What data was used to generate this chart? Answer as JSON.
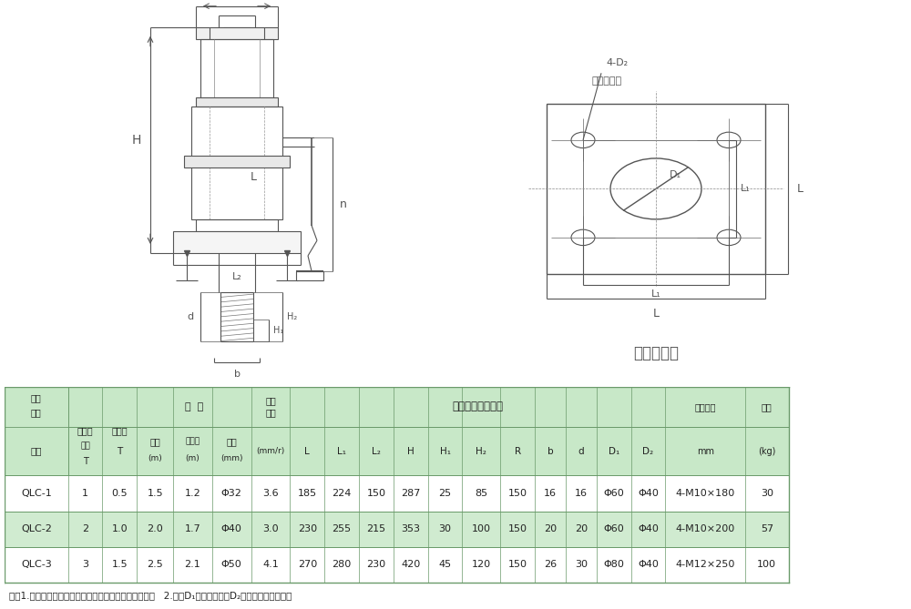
{
  "bg_color": "#ffffff",
  "line_color": "#555555",
  "table_header_bg": "#c8e8c8",
  "table_row_bg1": "#ffffff",
  "table_row_bg2": "#d0ebd0",
  "table_border_color": "#6a9a6a",
  "title_note": "注：1.启闭速度指的是手柄转一圈闸门提升或下降的距离   2.参数D₁是过螺杆孔，D₂是二次浇注预留孔。",
  "data_rows": [
    [
      "QLC-1",
      "1",
      "0.5",
      "1.5",
      "1.2",
      "Φ32",
      "3.6",
      "185",
      "224",
      "150",
      "287",
      "25",
      "85",
      "150",
      "16",
      "16",
      "Φ60",
      "Φ40",
      "4-M10×180",
      "30"
    ],
    [
      "QLC-2",
      "2",
      "1.0",
      "2.0",
      "1.7",
      "Φ40",
      "3.0",
      "230",
      "255",
      "215",
      "353",
      "30",
      "100",
      "150",
      "20",
      "20",
      "Φ60",
      "Φ40",
      "4-M10×200",
      "57"
    ],
    [
      "QLC-3",
      "3",
      "1.5",
      "2.5",
      "2.1",
      "Φ50",
      "4.1",
      "270",
      "280",
      "230",
      "420",
      "45",
      "120",
      "150",
      "26",
      "30",
      "Φ80",
      "Φ40",
      "4-M12×250",
      "100"
    ]
  ]
}
